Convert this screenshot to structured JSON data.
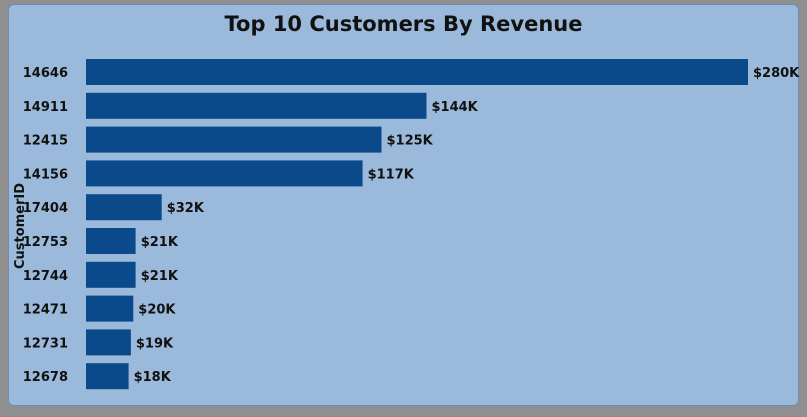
{
  "chart_data": {
    "type": "bar",
    "orientation": "horizontal",
    "title": "Top 10 Customers By Revenue",
    "ylabel": "CustomerID",
    "xlabel": "",
    "categories": [
      "14646",
      "14911",
      "12415",
      "14156",
      "17404",
      "12753",
      "12744",
      "12471",
      "12731",
      "12678"
    ],
    "values": [
      280,
      144,
      125,
      117,
      32,
      21,
      21,
      20,
      19,
      18
    ],
    "data_labels": [
      "$280K",
      "$144K",
      "$125K",
      "$117K",
      "$32K",
      "$21K",
      "$21K",
      "$20K",
      "$19K",
      "$18K"
    ],
    "unit": "thousand USD",
    "xlim": [
      0,
      280
    ],
    "grid": false,
    "legend": "none",
    "bar_color": "#0a4a8a",
    "background_color": "#9bbadb"
  }
}
